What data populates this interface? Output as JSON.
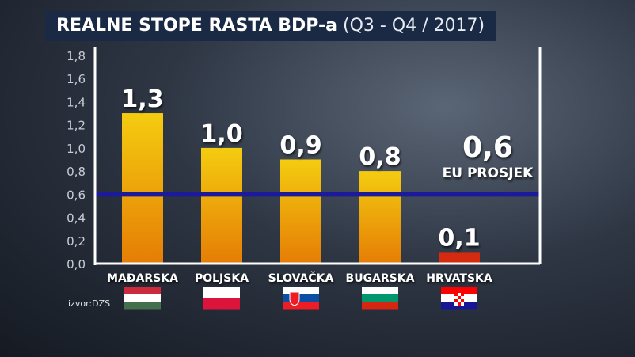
{
  "title": {
    "bold": "REALNE STOPE RASTA BDP-a",
    "light": "(Q3 - Q4 / 2017)"
  },
  "source": "izvor:DZS",
  "chart_data": {
    "type": "bar",
    "categories": [
      "MAĐARSKA",
      "POLJSKA",
      "SLOVAČKA",
      "BUGARSKA",
      "HRVATSKA"
    ],
    "values": [
      1.3,
      1.0,
      0.9,
      0.8,
      0.1
    ],
    "data_labels": [
      "1,3",
      "1,0",
      "0,9",
      "0,8",
      "0,1"
    ],
    "flags": [
      "hungary-flag",
      "poland-flag",
      "slovakia-flag",
      "bulgaria-flag",
      "croatia-flag"
    ],
    "bar_colors": [
      "#f0b000",
      "#f0b000",
      "#f0b000",
      "#f0b000",
      "#d42a10"
    ],
    "ylim": [
      0,
      1.8
    ],
    "yticks": [
      "0,0",
      "0,2",
      "0,4",
      "0,6",
      "0,8",
      "1,0",
      "1,2",
      "1,4",
      "1,6",
      "1,8"
    ],
    "reference_line": {
      "value": 0.6,
      "value_label": "0,6",
      "label": "EU PROSJEK",
      "color": "#1a1a9a"
    },
    "grid": false,
    "legend": "none"
  }
}
